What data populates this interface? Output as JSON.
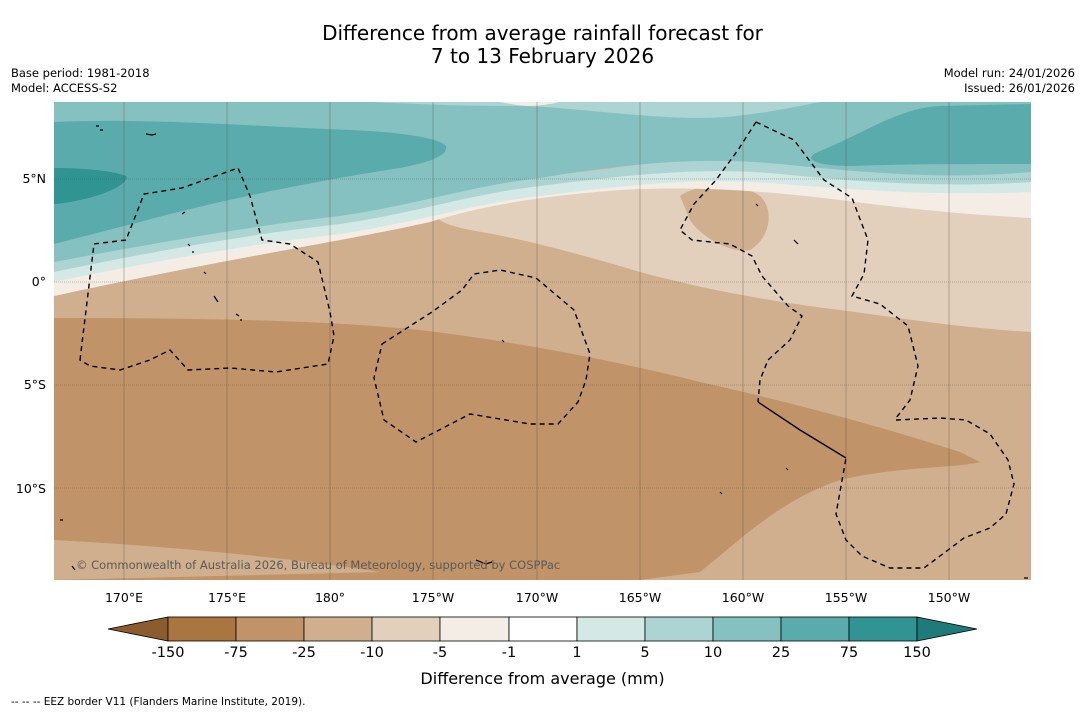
{
  "title": {
    "line1": "Difference from average rainfall forecast for",
    "line2": "7 to 13 February 2026"
  },
  "meta": {
    "base_period": "Base period: 1981-2018",
    "model": "Model: ACCESS-S2",
    "model_run": "Model run: 24/01/2026",
    "issued": "Issued: 26/01/2026"
  },
  "map": {
    "region": "Central Pacific, 170°E to 147°W, 14°S to 8°N",
    "latitude_labels": [
      "5°N",
      "0°",
      "5°S",
      "10°S"
    ],
    "longitude_labels": [
      "170°E",
      "175°E",
      "180°",
      "175°W",
      "170°W",
      "165°W",
      "160°W",
      "155°W",
      "150°W"
    ],
    "copyright": "© Commonwealth of Australia 2026, Bureau of Meteorology, supported by COSPPac",
    "eez_line_style": "dashed"
  },
  "colorbar": {
    "tick_labels": [
      "-150",
      "-75",
      "-25",
      "-10",
      "-5",
      "-1",
      "1",
      "5",
      "10",
      "25",
      "75",
      "150"
    ],
    "bin_colors": [
      "#a97540",
      "#c09368",
      "#d0af8e",
      "#e2d0bc",
      "#f3ede5",
      "#ffffff",
      "#d4e8e6",
      "#abd4d2",
      "#85c1c0",
      "#5aabac",
      "#2f9492"
    ],
    "extend_low_color": "#8d5c2e",
    "extend_high_color": "#1f7b79",
    "title": "Difference from average (mm)"
  },
  "footnote": "--  --  -- EEZ border V11 (Flanders Marine Institute, 2019)."
}
